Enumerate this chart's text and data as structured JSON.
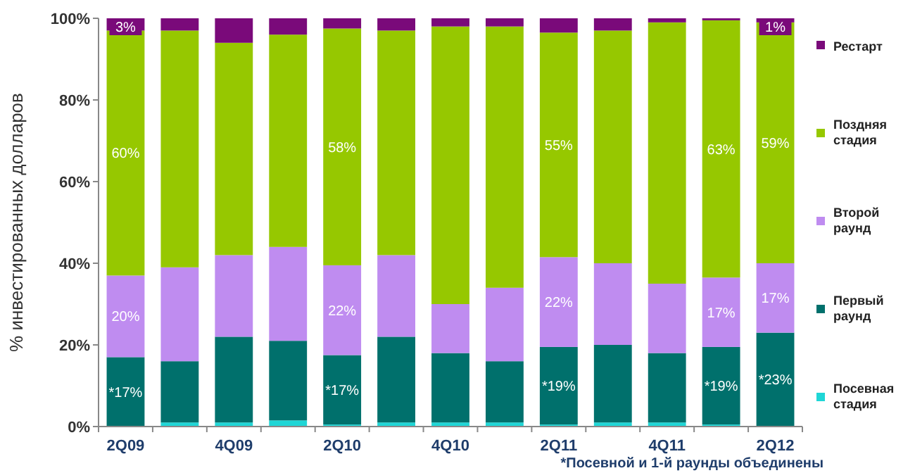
{
  "chart_data": {
    "type": "bar",
    "stacked": true,
    "ylabel": "% инвестированных долларов",
    "categories": [
      "2Q09",
      null,
      "4Q09",
      null,
      "2Q10",
      null,
      "4Q10",
      null,
      "2Q11",
      null,
      "4Q11",
      null,
      "2Q12"
    ],
    "ylim": [
      0,
      100
    ],
    "yticks": [
      {
        "value": 0,
        "label": "0%"
      },
      {
        "value": 20,
        "label": "20%"
      },
      {
        "value": 40,
        "label": "40%"
      },
      {
        "value": 60,
        "label": "60%"
      },
      {
        "value": 80,
        "label": "80%"
      },
      {
        "value": 100,
        "label": "100%"
      }
    ],
    "legend": "right",
    "grid": false,
    "annotations": [
      "*Посевной и 1-й раунды объединены"
    ],
    "series": [
      {
        "name": "Посевная стадия",
        "color": "#1fd6d6",
        "values": [
          0,
          1,
          1,
          1.5,
          0.5,
          1,
          1,
          1,
          0.5,
          1,
          1,
          0.5,
          0
        ]
      },
      {
        "name": "Первый раунд",
        "color": "#00706c",
        "values": [
          17,
          15,
          21,
          19.5,
          17,
          21,
          17,
          15,
          19,
          19,
          17,
          19,
          23
        ],
        "value_labels": [
          "*17%",
          null,
          null,
          null,
          "*17%",
          null,
          null,
          null,
          "*19%",
          null,
          null,
          "*19%",
          "*23%"
        ]
      },
      {
        "name": "Второй раунд",
        "color": "#bf8cf0",
        "values": [
          20,
          23,
          20,
          23,
          22,
          20,
          12,
          18,
          22,
          20,
          17,
          17,
          17
        ],
        "value_labels": [
          "20%",
          null,
          null,
          null,
          "22%",
          null,
          null,
          null,
          "22%",
          null,
          null,
          "17%",
          "17%"
        ]
      },
      {
        "name": "Поздняя стадия",
        "color": "#96c800",
        "values": [
          60,
          58,
          52,
          52,
          58,
          55,
          68,
          64,
          55,
          57,
          64,
          63,
          59
        ],
        "value_labels": [
          "60%",
          null,
          null,
          null,
          "58%",
          null,
          null,
          null,
          "55%",
          null,
          null,
          "63%",
          "59%"
        ]
      },
      {
        "name": "Рестарт",
        "color": "#7a0a7a",
        "values": [
          3,
          3,
          6,
          4,
          2.5,
          3,
          2,
          2,
          3.5,
          3,
          1,
          0.5,
          1
        ],
        "value_labels": [
          "3%",
          null,
          null,
          null,
          null,
          null,
          null,
          null,
          null,
          null,
          null,
          null,
          "1%"
        ]
      }
    ]
  }
}
